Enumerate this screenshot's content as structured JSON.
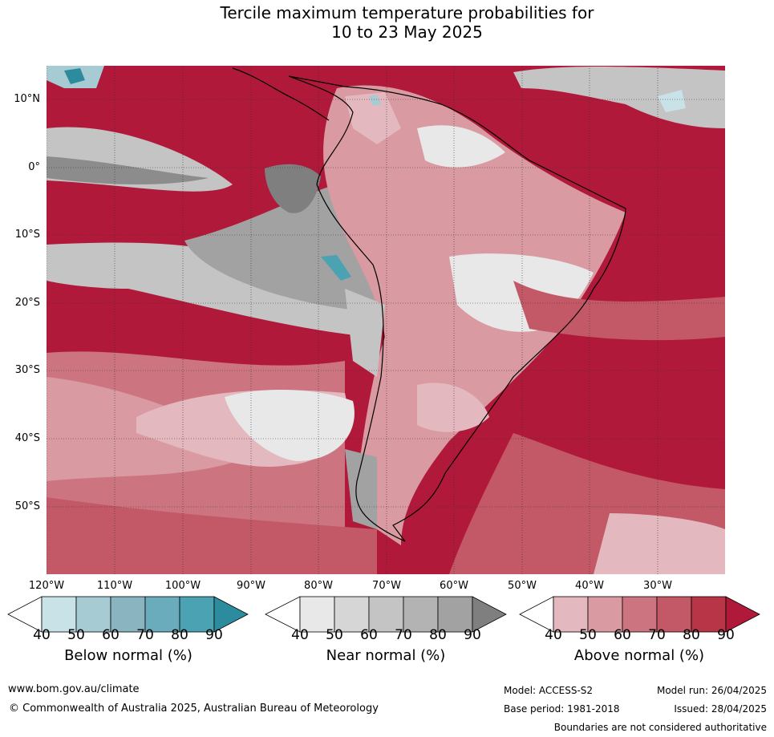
{
  "title_line1": "Tercile maximum temperature probabilities for",
  "title_line2": "10 to 23 May 2025",
  "lat_labels": [
    "10°N",
    "0°",
    "10°S",
    "20°S",
    "30°S",
    "40°S",
    "50°S"
  ],
  "lon_labels": [
    "120°W",
    "110°W",
    "100°W",
    "90°W",
    "80°W",
    "70°W",
    "60°W",
    "50°W",
    "40°W",
    "30°W"
  ],
  "colorbars": [
    {
      "label": "Below normal (%)",
      "ticks": [
        "40",
        "50",
        "60",
        "70",
        "80",
        "90"
      ],
      "colors": [
        "#ffffff",
        "#c8e2e8",
        "#a6cbd2",
        "#89b4c0",
        "#6aacbb",
        "#4aa2b2",
        "#2d8b9e"
      ]
    },
    {
      "label": "Near normal (%)",
      "ticks": [
        "40",
        "50",
        "60",
        "70",
        "80",
        "90"
      ],
      "colors": [
        "#ffffff",
        "#e8e8e8",
        "#d6d6d6",
        "#c4c4c4",
        "#b3b3b3",
        "#a2a2a2",
        "#7f7f7f"
      ]
    },
    {
      "label": "Above normal (%)",
      "ticks": [
        "40",
        "50",
        "60",
        "70",
        "80",
        "90"
      ],
      "colors": [
        "#ffffff",
        "#e3b8be",
        "#d99aa2",
        "#cc7580",
        "#c35866",
        "#b83447",
        "#b1193a"
      ]
    }
  ],
  "footer": {
    "website": "www.bom.gov.au/climate",
    "copyright": "© Commonwealth of Australia 2025, Australian Bureau of Meteorology",
    "model": "Model: ACCESS-S2",
    "model_run": "Model run: 26/04/2025",
    "base_period": "Base period: 1981-2018",
    "issued": "Issued: 28/04/2025",
    "disclaimer": "Boundaries are not considered authoritative"
  },
  "colors": {
    "ocean_above": "#b1193a",
    "land_above": "#c35866",
    "near_normal": "#a2a2a2",
    "below_normal": "#4aa2b2"
  }
}
